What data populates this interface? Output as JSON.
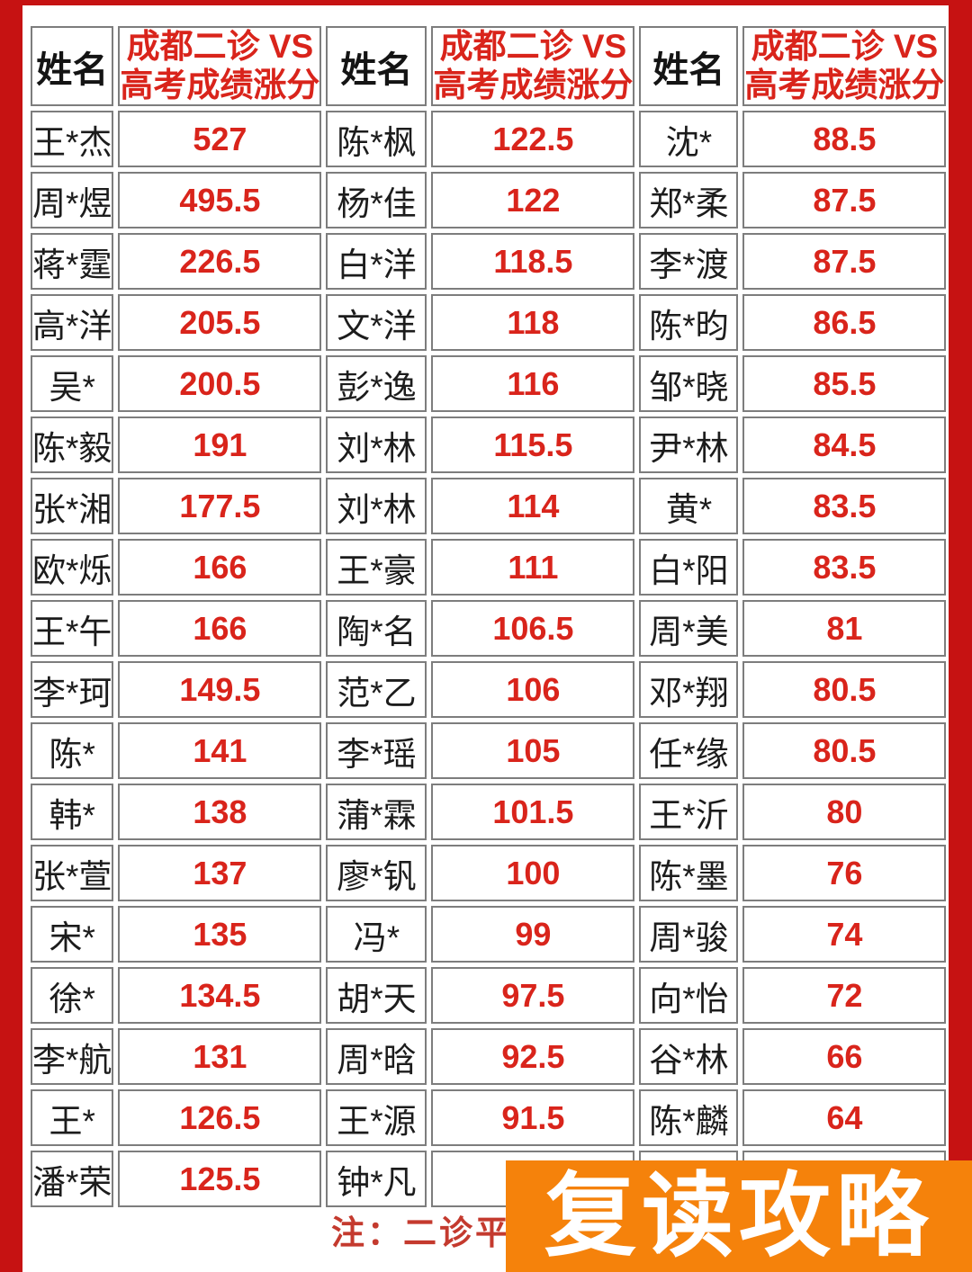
{
  "table": {
    "header": {
      "name_label": "姓名",
      "score_label_line1": "成都二诊 VS",
      "score_label_line2": "高考成绩涨分"
    },
    "groups": [
      {
        "rows": [
          {
            "name": "王*杰",
            "score": "527"
          },
          {
            "name": "周*煜",
            "score": "495.5"
          },
          {
            "name": "蒋*霆",
            "score": "226.5"
          },
          {
            "name": "高*洋",
            "score": "205.5"
          },
          {
            "name": "吴*",
            "score": "200.5"
          },
          {
            "name": "陈*毅",
            "score": "191"
          },
          {
            "name": "张*湘",
            "score": "177.5"
          },
          {
            "name": "欧*烁",
            "score": "166"
          },
          {
            "name": "王*午",
            "score": "166"
          },
          {
            "name": "李*珂",
            "score": "149.5"
          },
          {
            "name": "陈*",
            "score": "141"
          },
          {
            "name": "韩*",
            "score": "138"
          },
          {
            "name": "张*萱",
            "score": "137"
          },
          {
            "name": "宋*",
            "score": "135"
          },
          {
            "name": "徐*",
            "score": "134.5"
          },
          {
            "name": "李*航",
            "score": "131"
          },
          {
            "name": "王*",
            "score": "126.5"
          },
          {
            "name": "潘*荣",
            "score": "125.5"
          }
        ]
      },
      {
        "rows": [
          {
            "name": "陈*枫",
            "score": "122.5"
          },
          {
            "name": "杨*佳",
            "score": "122"
          },
          {
            "name": "白*洋",
            "score": "118.5"
          },
          {
            "name": "文*洋",
            "score": "118"
          },
          {
            "name": "彭*逸",
            "score": "116"
          },
          {
            "name": "刘*林",
            "score": "115.5"
          },
          {
            "name": "刘*林",
            "score": "114"
          },
          {
            "name": "王*豪",
            "score": "111"
          },
          {
            "name": "陶*名",
            "score": "106.5"
          },
          {
            "name": "范*乙",
            "score": "106"
          },
          {
            "name": "李*瑶",
            "score": "105"
          },
          {
            "name": "蒲*霖",
            "score": "101.5"
          },
          {
            "name": "廖*钒",
            "score": "100"
          },
          {
            "name": "冯*",
            "score": "99"
          },
          {
            "name": "胡*天",
            "score": "97.5"
          },
          {
            "name": "周*晗",
            "score": "92.5"
          },
          {
            "name": "王*源",
            "score": "91.5"
          },
          {
            "name": "钟*凡",
            "score": ""
          }
        ]
      },
      {
        "rows": [
          {
            "name": "沈*",
            "score": "88.5"
          },
          {
            "name": "郑*柔",
            "score": "87.5"
          },
          {
            "name": "李*渡",
            "score": "87.5"
          },
          {
            "name": "陈*昀",
            "score": "86.5"
          },
          {
            "name": "邹*晓",
            "score": "85.5"
          },
          {
            "name": "尹*林",
            "score": "84.5"
          },
          {
            "name": "黄*",
            "score": "83.5"
          },
          {
            "name": "白*阳",
            "score": "83.5"
          },
          {
            "name": "周*美",
            "score": "81"
          },
          {
            "name": "邓*翔",
            "score": "80.5"
          },
          {
            "name": "任*缘",
            "score": "80.5"
          },
          {
            "name": "王*沂",
            "score": "80"
          },
          {
            "name": "陈*墨",
            "score": "76"
          },
          {
            "name": "周*骏",
            "score": "74"
          },
          {
            "name": "向*怡",
            "score": "72"
          },
          {
            "name": "谷*林",
            "score": "66"
          },
          {
            "name": "陈*麟",
            "score": "64"
          },
          {
            "name": "",
            "score": ""
          }
        ]
      }
    ]
  },
  "note": {
    "text": "注：二诊平均涨"
  },
  "banner": {
    "text": "复读攻略"
  },
  "colors": {
    "frame_red": "#c61212",
    "score_red": "#d9241b",
    "note_red": "#c43a2e",
    "banner_orange": "#f5820b",
    "name_black": "#1c1c1c",
    "grid_gray": "#7d7d7d"
  }
}
